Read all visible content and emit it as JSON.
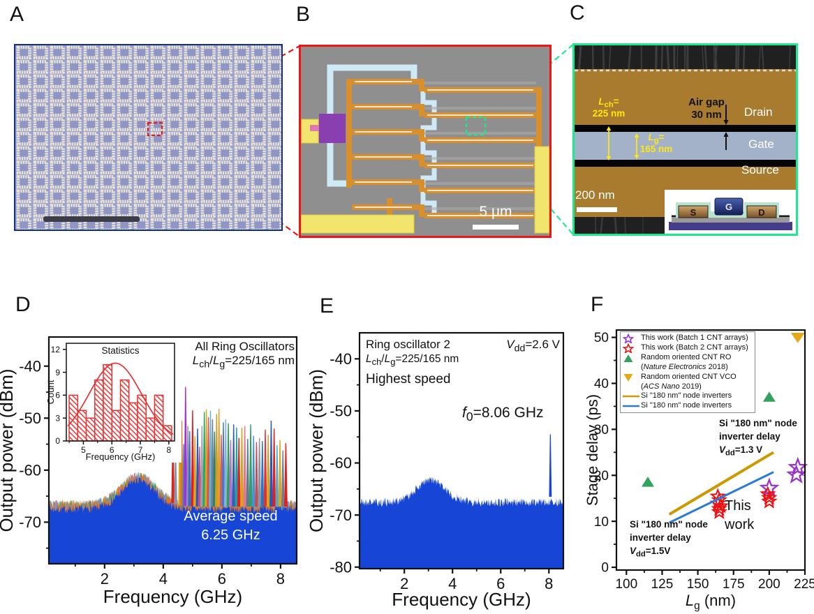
{
  "figure": {
    "panel_labels": {
      "A": "A",
      "B": "B",
      "C": "C",
      "D": "D",
      "E": "E",
      "F": "F"
    }
  },
  "panelA": {
    "description": "optical micrograph of CNT ring-oscillator die array",
    "grid": {
      "cols": 16,
      "rows": 13
    },
    "colors": {
      "background": "#9aa0cf",
      "ring": "#eae4d4",
      "center": "#8f96c6",
      "border": "#16307e",
      "scalebar": "#3d3d49",
      "roi": "#ee1515"
    }
  },
  "panelB": {
    "description": "false-colored SEM of a five-stage ring oscillator",
    "scale_bar_label": "5 μm",
    "stages": 6,
    "colors": {
      "border": "#ee1515",
      "background": "#8f8f8f",
      "metal": "#d98f2b",
      "gate_line": "#cfe9f6",
      "pad": "#f2e56e",
      "probe": "#8a3fb0",
      "pink": "#e079b0",
      "roi": "#1ae98e"
    }
  },
  "panelC": {
    "description": "false-colored cross-section SEM of T-shaped gate transistor",
    "labels": {
      "lch": "*L*_{ch}=",
      "lch_val": "225 nm",
      "lg": "*L*_{g}=",
      "lg_val": "165 nm",
      "airgap1": "Air gap",
      "airgap2": "30 nm",
      "drain": "Drain",
      "gate": "Gate",
      "source": "Source",
      "scale_bar": "200 nm"
    },
    "inset_labels": {
      "s": "S",
      "g": "G",
      "d": "D"
    },
    "colors": {
      "border": "#1de98e",
      "electrode": "#a87b2e",
      "gate_band": "#a3b1c9",
      "gap": "#060606",
      "dark_band": "#202020",
      "label_yellow": "#ffe714"
    }
  },
  "chart_data": [
    {
      "id": "D",
      "type": "area",
      "xlabel": "Frequency (GHz)",
      "ylabel": "Output power (dBm)",
      "xlim": [
        0.1,
        8.55
      ],
      "ylim": [
        -78,
        -34.4
      ],
      "xticks": [
        2,
        4,
        6,
        8
      ],
      "xminor": [
        1,
        3,
        5,
        7
      ],
      "yticks": [
        -40,
        -50,
        -60,
        -70
      ],
      "yminor": [
        -45,
        -55,
        -65,
        -75
      ],
      "grid": false,
      "fill_color": "#1746d6",
      "noise": {
        "floor_dbm": -67.8,
        "hump_freq": 3.15,
        "hump_db": 5.5,
        "hump_sigma": 0.58,
        "jitter_db": 1.6
      },
      "fringe_colors": [
        "#d9a41c",
        "#e02020",
        "#20a080",
        "#8a93a6",
        "#2ea84e",
        "#e87a90",
        "#5aa0e0",
        "#e07820"
      ],
      "annotations": {
        "title": "All Ring Oscillators",
        "dims": "*L*_{ch}/*L*_{g}=225/165 nm",
        "avg_line1": "Average speed",
        "avg_line2": "6.25 GHz"
      },
      "peaks": [
        [
          4.33,
          -53.0,
          "#dd2222"
        ],
        [
          4.42,
          -55.5,
          "#8a93a6"
        ],
        [
          4.57,
          -45.8,
          "#d9a41c"
        ],
        [
          4.63,
          -50.5,
          "#e07820"
        ],
        [
          4.7,
          -55.0,
          "#4f81bd"
        ],
        [
          4.76,
          -44.0,
          "#a62ce0"
        ],
        [
          4.84,
          -51.5,
          "#8a93a6"
        ],
        [
          4.9,
          -52.5,
          "#3a6fc4"
        ],
        [
          5.0,
          -48.5,
          "#e02020"
        ],
        [
          5.08,
          -53.5,
          "#d9a41c"
        ],
        [
          5.17,
          -52.0,
          "#2458c0"
        ],
        [
          5.24,
          -55.5,
          "#d04f7a"
        ],
        [
          5.32,
          -51.5,
          "#9aa2b0"
        ],
        [
          5.4,
          -48.8,
          "#22a86e"
        ],
        [
          5.47,
          -48.3,
          "#d9a41c"
        ],
        [
          5.54,
          -49.8,
          "#e05050"
        ],
        [
          5.61,
          -48.6,
          "#56b8d8"
        ],
        [
          5.68,
          -50.2,
          "#708090"
        ],
        [
          5.75,
          -52.6,
          "#2e7d6e"
        ],
        [
          5.82,
          -49.2,
          "#c8a020"
        ],
        [
          5.9,
          -48.2,
          "#e0a030"
        ],
        [
          5.98,
          -53.2,
          "#d06060"
        ],
        [
          6.05,
          -50.8,
          "#4a78c8"
        ],
        [
          6.13,
          -50.2,
          "#88b0d8"
        ],
        [
          6.22,
          -51.0,
          "#2e9e50"
        ],
        [
          6.3,
          -54.2,
          "#b86adb"
        ],
        [
          6.4,
          -51.2,
          "#3060b0"
        ],
        [
          6.5,
          -51.8,
          "#20a0a0"
        ],
        [
          6.58,
          -53.8,
          "#e02020"
        ],
        [
          6.68,
          -51.8,
          "#d9a41c"
        ],
        [
          6.78,
          -51.5,
          "#e87888"
        ],
        [
          6.88,
          -54.0,
          "#607890"
        ],
        [
          6.98,
          -51.2,
          "#30a060"
        ],
        [
          7.08,
          -53.4,
          "#4a90d9"
        ],
        [
          7.18,
          -54.6,
          "#c05050"
        ],
        [
          7.28,
          -53.8,
          "#9090a8"
        ],
        [
          7.38,
          -54.4,
          "#2878c0"
        ],
        [
          7.48,
          -52.2,
          "#e03030"
        ],
        [
          7.58,
          -53.2,
          "#d9a41c"
        ],
        [
          7.68,
          -50.5,
          "#2458c0"
        ],
        [
          7.78,
          -52.0,
          "#e02020"
        ],
        [
          7.88,
          -55.2,
          "#56a8c8"
        ],
        [
          7.98,
          -54.2,
          "#d9a41c"
        ],
        [
          8.08,
          -56.2,
          "#708090"
        ],
        [
          8.18,
          -54.8,
          "#e02020"
        ]
      ]
    },
    {
      "id": "D-inset",
      "type": "bar",
      "title": "Statistics",
      "xlabel": "Frequency (GHz)",
      "ylabel": "Count",
      "xlim": [
        4.4,
        8.2
      ],
      "ylim": [
        0,
        12.8
      ],
      "xticks": [
        5,
        6,
        7,
        8
      ],
      "xminor": [
        4.5,
        5.5,
        6.5,
        7.5
      ],
      "yticks": [
        0,
        3,
        6,
        9,
        12
      ],
      "bin_start": 4.5,
      "bin_width": 0.3,
      "values": [
        6,
        4,
        3,
        8,
        10,
        4,
        8,
        5,
        6,
        3,
        6,
        2
      ],
      "bar_color": "#e63232",
      "hatch": "diagonal",
      "fit": {
        "type": "gaussian",
        "amplitude": 10.2,
        "mean": 6.12,
        "sigma": 0.92
      }
    },
    {
      "id": "E",
      "type": "area",
      "xlabel": "Frequency (GHz)",
      "ylabel": "Output power (dBm)",
      "xlim": [
        0.14,
        8.6
      ],
      "ylim": [
        -80.3,
        -35
      ],
      "xticks": [
        2,
        4,
        6,
        8
      ],
      "xminor": [
        1,
        3,
        5,
        7
      ],
      "yticks": [
        -40,
        -50,
        -60,
        -70,
        -80
      ],
      "yminor": [
        -45,
        -55,
        -65,
        -75
      ],
      "grid": false,
      "fill_color": "#1746d6",
      "noise": {
        "floor_dbm": -68.0,
        "hump_freq": 3.1,
        "hump_db": 4.2,
        "hump_sigma": 0.6,
        "jitter_db": 1.7
      },
      "peak": {
        "freq": 8.06,
        "dbm": -54.5
      },
      "annotations": {
        "title": "Ring oscillator 2",
        "vdd": "*V*_{dd}=2.6 V",
        "dims": "*L*_{ch}/*L*_{g}=225/165 nm",
        "speed": "Highest speed",
        "f0": "*f*_{0}=8.06 GHz"
      }
    },
    {
      "id": "F",
      "type": "scatter",
      "xlabel": "*L*_{g} (nm)",
      "ylabel": "Stage delay (ps)",
      "xlim": [
        93,
        225
      ],
      "ylim": [
        -0.6,
        51.6
      ],
      "xticks": [
        100,
        125,
        150,
        175,
        200,
        225
      ],
      "xminor": [
        112.5,
        137.5,
        162.5,
        187.5,
        212.5
      ],
      "yticks": [
        0,
        10,
        20,
        30,
        40,
        50
      ],
      "yminor": [
        5,
        15,
        25,
        35,
        45
      ],
      "grid": false,
      "legend_position": "top-left",
      "legend": [
        {
          "marker": "star",
          "color": "#9933cc",
          "label": "This work (Batch 1 CNT arrays)"
        },
        {
          "marker": "star",
          "color": "#ee1111",
          "label": "This work (Batch 2 CNT arrays)"
        },
        {
          "marker": "triangle-up",
          "color": "#33a35c",
          "label": "Random oriented CNT RO",
          "label2": "(*Nature Electronics* 2018)"
        },
        {
          "marker": "triangle-down",
          "color": "#e6a817",
          "label": "Random oriented CNT VCO",
          "label2": "(*ACS Nano* 2019)"
        },
        {
          "marker": "line",
          "color": "#cc9900",
          "label": "Si \"180 nm\" node inverters"
        },
        {
          "marker": "line",
          "color": "#2b7bd6",
          "label": "Si \"180 nm\" node inverters"
        }
      ],
      "series": [
        {
          "name": "This work (Batch 1 CNT arrays)",
          "marker": "star",
          "color": "#9933cc",
          "points": [
            [
              200,
              17.2
            ],
            [
              219,
              20.1
            ],
            [
              220,
              21.7
            ]
          ]
        },
        {
          "name": "This work (Batch 2 CNT arrays)",
          "marker": "star",
          "color": "#ee1111",
          "points": [
            [
              164,
              15.4
            ],
            [
              165,
              14.6
            ],
            [
              164,
              13.9
            ],
            [
              166,
              13.3
            ],
            [
              165,
              12.7
            ],
            [
              165,
              12.0
            ],
            [
              199,
              15.9
            ],
            [
              200,
              15.1
            ],
            [
              200,
              14.3
            ]
          ]
        },
        {
          "name": "Random oriented CNT RO (Nature Electronics 2018)",
          "marker": "triangle-up",
          "color": "#33a35c",
          "points": [
            [
              115,
              18.5
            ],
            [
              200,
              37
            ]
          ]
        },
        {
          "name": "Random oriented CNT VCO (ACS Nano 2019)",
          "marker": "triangle-down",
          "color": "#e6a817",
          "points": [
            [
              220,
              50
            ]
          ]
        },
        {
          "name": "Si \"180 nm\" node inverters (Vdd=1.3 V)",
          "marker": "line",
          "color": "#cc9900",
          "points": [
            [
              130,
              11.5
            ],
            [
              203,
              25.0
            ]
          ]
        },
        {
          "name": "Si \"180 nm\" node inverters (Vdd=1.5 V)",
          "marker": "line",
          "color": "#2b7bd6",
          "points": [
            [
              130,
              9.7
            ],
            [
              203,
              20.7
            ]
          ]
        }
      ],
      "annotations": {
        "top": [
          "Si \"180 nm\" node",
          "inverter delay",
          "*V*_{dd}=1.3 V"
        ],
        "this_work": [
          "This",
          "work"
        ],
        "bottom": [
          "Si \"180 nm\" node",
          "inverter delay",
          "*V*_{dd}=1.5V"
        ]
      }
    }
  ]
}
